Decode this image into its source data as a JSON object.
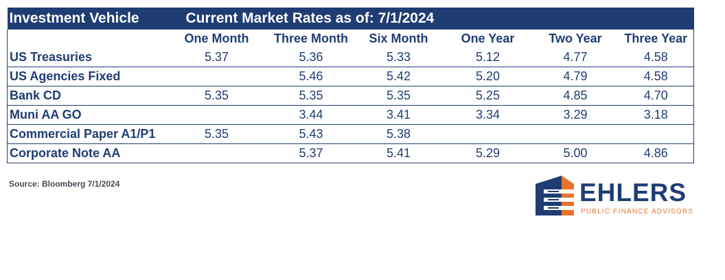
{
  "table": {
    "vehicle_header": "Investment Vehicle",
    "rates_header": "Current Market Rates as of: 7/1/2024",
    "columns": [
      "One Month",
      "Three Month",
      "Six Month",
      "One Year",
      "Two Year",
      "Three Year"
    ],
    "rows": [
      {
        "name": "US Treasuries",
        "values": [
          "5.37",
          "5.36",
          "5.33",
          "5.12",
          "4.77",
          "4.58"
        ]
      },
      {
        "name": "US Agencies Fixed",
        "values": [
          "",
          "5.46",
          "5.42",
          "5.20",
          "4.79",
          "4.58"
        ]
      },
      {
        "name": "Bank CD",
        "values": [
          "5.35",
          "5.35",
          "5.35",
          "5.25",
          "4.85",
          "4.70"
        ]
      },
      {
        "name": "Muni AA GO",
        "values": [
          "",
          "3.44",
          "3.41",
          "3.34",
          "3.29",
          "3.18"
        ]
      },
      {
        "name": "Commercial Paper A1/P1",
        "values": [
          "5.35",
          "5.43",
          "5.38",
          "",
          "",
          ""
        ]
      },
      {
        "name": "Corporate Note AA",
        "values": [
          "",
          "5.37",
          "5.41",
          "5.29",
          "5.00",
          "4.86"
        ]
      }
    ]
  },
  "source": "Source: Bloomberg 7/1/2024",
  "logo": {
    "name": "EHLERS",
    "tagline": "PUBLIC FINANCE ADVISORS",
    "icon": "ehlers-building-logo-icon"
  },
  "colors": {
    "navy": "#1f3d73",
    "orange": "#e8742a"
  }
}
